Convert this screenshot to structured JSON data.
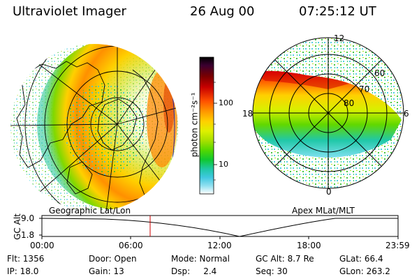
{
  "header": {
    "instrument": "Ultraviolet Imager",
    "date": "26 Aug 00",
    "time": "07:25:12 UT"
  },
  "left_panel": {
    "caption": "Geographic Lat/Lon"
  },
  "right_panel": {
    "caption": "Apex MLat/MLT",
    "mlt_labels": [
      "12",
      "18",
      "6",
      "0"
    ],
    "lat_labels": [
      "60",
      "70",
      "80"
    ]
  },
  "colorbar": {
    "unit_label": "photon cm⁻²s⁻¹",
    "ticks": [
      "100",
      "10"
    ],
    "colors": [
      "#000000",
      "#3a0030",
      "#7a0000",
      "#c80000",
      "#ff5000",
      "#ff9a00",
      "#ffd000",
      "#dff000",
      "#a8e000",
      "#54d800",
      "#10c830",
      "#20c8a8",
      "#40c8e0",
      "#90e0f0",
      "#e0f4f8",
      "#ffffff"
    ]
  },
  "altitude_strip": {
    "axis_label": "GC Alt",
    "y_ticks": [
      "9.0",
      "1.8"
    ],
    "x_ticks": [
      "00:00",
      "06:00",
      "12:00",
      "18:00",
      "23:59"
    ],
    "marker_color": "#cc0000"
  },
  "info": {
    "flt": "Flt: 1356",
    "door": "Door: Open",
    "mode": "Mode: Normal",
    "gc_alt": "GC Alt: 8.7 Re",
    "glat": "GLat:  66.4",
    "ip": "IP: 18.0",
    "gain": "Gain: 13",
    "dsp": "Dsp:     2.4",
    "seq": "Seq: 30",
    "glon": "GLon: 263.2"
  }
}
